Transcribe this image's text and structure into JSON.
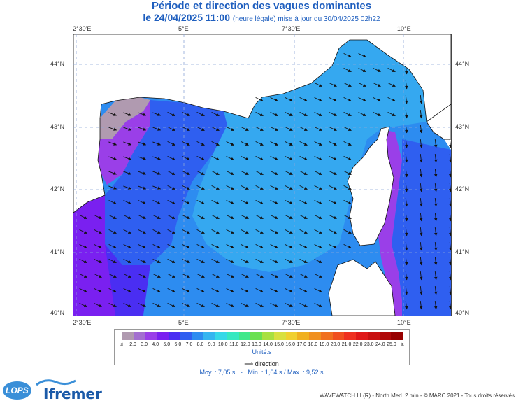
{
  "header": {
    "title": "Période et direction des vagues dominantes",
    "date_line": "le 24/04/2025 11:00",
    "update_note": "(heure légale) mise à jour du 30/04/2025 02h22"
  },
  "map": {
    "lon_ticks_top": [
      "2°30'E",
      "5°E",
      "7°30'E",
      "10°E"
    ],
    "lon_ticks_bottom": [
      "2°30'E",
      "5°E",
      "7°30'E",
      "10°E"
    ],
    "lat_ticks_left": [
      "44°N",
      "43°N",
      "42°N",
      "41°N",
      "40°N"
    ],
    "lat_ticks_right": [
      "44°N",
      "43°N",
      "42°N",
      "41°N",
      "40°N"
    ]
  },
  "legend": {
    "labels": [
      "≤",
      "2,0",
      "3,0",
      "4,0",
      "5,0",
      "6,0",
      "7,0",
      "8,0",
      "9,0",
      "10,0",
      "11,0",
      "12,0",
      "13,0",
      "14,0",
      "15,0",
      "16,0",
      "17,0",
      "18,0",
      "19,0",
      "20,0",
      "21,0",
      "22,0",
      "23,0",
      "24,0",
      "25,0",
      "≥"
    ],
    "colors": [
      "#b09ab0",
      "#a36fd0",
      "#9a3fe8",
      "#7a20f0",
      "#4a2ef2",
      "#2f5ff0",
      "#2d8cf0",
      "#35b5f0",
      "#36d8e8",
      "#36e8c0",
      "#40e88a",
      "#6ae050",
      "#a8e040",
      "#d8e040",
      "#f0d030",
      "#f0b020",
      "#f09020",
      "#f07020",
      "#f05020",
      "#ef3020",
      "#e01818",
      "#c81010",
      "#b00808",
      "#980000"
    ],
    "unit": "Unité:s",
    "direction_label": "direction"
  },
  "stats": {
    "mean": "Moy. : 7,05 s",
    "sep": "-",
    "min": "Min. : 1,64 s / Max. : 9,52 s"
  },
  "footer": {
    "credits": "WAVEWATCH III (R) - North Med. 2 min - © MARC 2021 - Tous droits réservés",
    "logo_lops": "LOPS",
    "logo_ifremer": "Ifremer"
  }
}
